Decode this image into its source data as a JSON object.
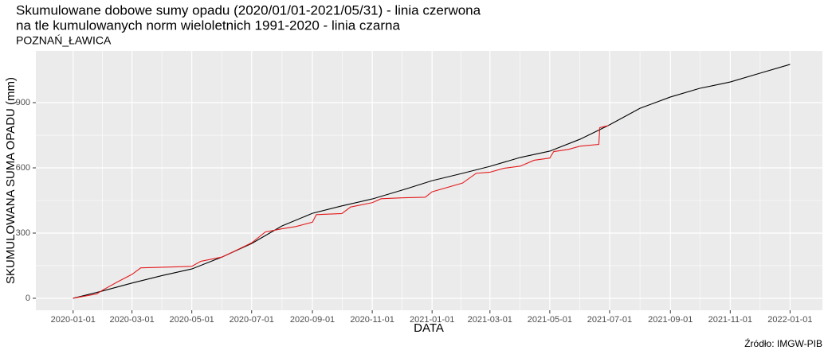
{
  "chart_data": {
    "type": "line",
    "title": "Skumulowane dobowe sumy opadu (2020/01/01-2021/05/31) - linia czerwona",
    "title_line2": "na tle kumulowanych norm wieloletnich 1991-2020 - linia czarna",
    "subtitle": "POZNAŃ_ŁAWICA",
    "xlabel": "DATA",
    "ylabel": "SKUMULOWANA SUMA OPADU (mm)",
    "caption": "Źródło: IMGW-PIB",
    "xlim": [
      "2019-11-24",
      "2022-02-03"
    ],
    "xticks": [
      "2020-01-01",
      "2020-03-01",
      "2020-05-01",
      "2020-07-01",
      "2020-09-01",
      "2020-11-01",
      "2021-01-01",
      "2021-03-01",
      "2021-05-01",
      "2021-07-01",
      "2021-09-01",
      "2021-11-01",
      "2022-01-01"
    ],
    "ylim": [
      -55,
      1138
    ],
    "yticks": [
      0,
      300,
      600,
      900
    ],
    "grid": true,
    "series": [
      {
        "color": "#000000",
        "x": [
          "2020-01-01",
          "2020-02-01",
          "2020-03-01",
          "2020-04-01",
          "2020-05-01",
          "2020-06-01",
          "2020-07-01",
          "2020-08-01",
          "2020-09-01",
          "2020-10-01",
          "2020-11-01",
          "2020-12-01",
          "2021-01-01",
          "2021-02-01",
          "2021-03-01",
          "2021-04-01",
          "2021-05-01",
          "2021-06-01",
          "2021-07-01",
          "2021-08-01",
          "2021-09-01",
          "2021-10-01",
          "2021-11-01",
          "2021-12-01",
          "2022-01-01"
        ],
        "values": [
          0,
          35,
          70,
          105,
          135,
          190,
          252,
          333,
          391,
          425,
          457,
          497,
          541,
          575,
          607,
          648,
          677,
          732,
          798,
          874,
          926,
          966,
          995,
          1035,
          1076
        ]
      },
      {
        "color": "#e41a1c",
        "x": [
          "2020-01-01",
          "2020-01-25",
          "2020-02-01",
          "2020-02-15",
          "2020-03-01",
          "2020-03-10",
          "2020-04-01",
          "2020-05-01",
          "2020-05-10",
          "2020-06-01",
          "2020-06-15",
          "2020-07-01",
          "2020-07-15",
          "2020-08-01",
          "2020-08-15",
          "2020-09-01",
          "2020-09-05",
          "2020-10-01",
          "2020-10-10",
          "2020-11-01",
          "2020-11-10",
          "2020-12-01",
          "2020-12-25",
          "2021-01-01",
          "2021-02-01",
          "2021-02-15",
          "2021-03-01",
          "2021-03-15",
          "2021-04-01",
          "2021-04-15",
          "2021-05-01",
          "2021-05-05",
          "2021-05-20",
          "2021-06-01",
          "2021-06-20",
          "2021-06-21",
          "2021-06-30"
        ],
        "values": [
          0,
          20,
          40,
          75,
          110,
          140,
          143,
          147,
          170,
          190,
          220,
          255,
          305,
          320,
          330,
          350,
          385,
          390,
          420,
          440,
          458,
          462,
          465,
          490,
          530,
          575,
          580,
          598,
          608,
          635,
          645,
          675,
          685,
          700,
          708,
          785,
          795
        ]
      }
    ]
  }
}
